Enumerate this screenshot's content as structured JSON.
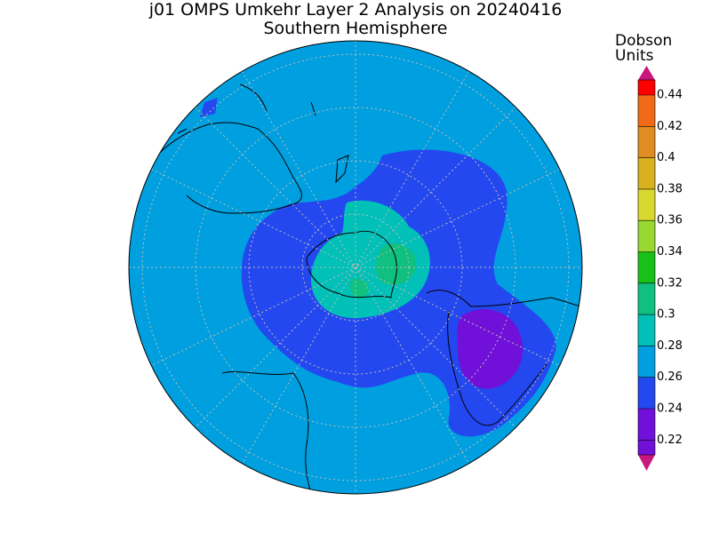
{
  "header": {
    "title": "j01 OMPS Umkehr Layer 2 Analysis on 20240416",
    "subtitle": "Southern Hemisphere"
  },
  "colorbar": {
    "title": [
      "Dobson",
      "Units"
    ],
    "ticks": [
      0.44,
      0.42,
      0.4,
      0.38,
      0.36,
      0.34,
      0.32,
      0.3,
      0.28,
      0.26,
      0.24,
      0.22
    ],
    "colors": [
      "#ff0000",
      "#f06a18",
      "#e08c20",
      "#d8b020",
      "#d8d830",
      "#98d830",
      "#18c018",
      "#10c080",
      "#00c0b8",
      "#00a0e0",
      "#2448f0",
      "#7010d8",
      "#7010d8"
    ],
    "end_colors": [
      "#c8187e",
      "#c8187e"
    ]
  }
}
